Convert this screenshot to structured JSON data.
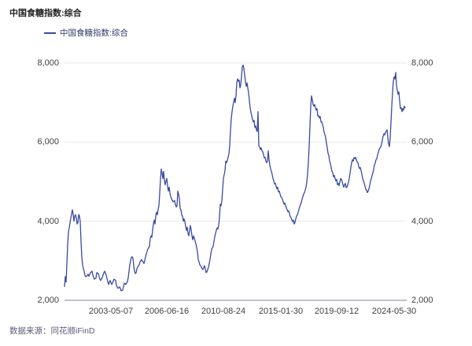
{
  "header": {
    "title": "中国食糖指数:综合"
  },
  "legend": {
    "items": [
      {
        "label": "中国食糖指数:综合",
        "color": "#3b4aa0"
      }
    ]
  },
  "footer": {
    "source": "数据来源：同花顺iFinD"
  },
  "colors": {
    "line": "#3b4aa0",
    "grid": "#e9e9f2",
    "axis": "#9c9cb5",
    "tick_text": "#404040"
  },
  "chart_data": {
    "type": "line",
    "title": "中国食糖指数:综合",
    "ylim": [
      2000,
      8000
    ],
    "grid": "horizontal",
    "axis_sides": "both",
    "legend_position": "top-left",
    "y_ticks": {
      "values": [
        2000,
        4000,
        6000,
        8000
      ],
      "labels": [
        "2,000",
        "4,000",
        "6,000",
        "8,000"
      ]
    },
    "x_ticks": {
      "labels": [
        "2003-05-07",
        "2006-06-16",
        "2010-08-24",
        "2015-01-30",
        "2019-09-12",
        "2024-05-30"
      ],
      "fractions": [
        0.1356,
        0.2989,
        0.4644,
        0.6322,
        0.7954,
        0.9632
      ]
    },
    "series": [
      {
        "name": "中国食糖指数:综合",
        "color": "#3b4aa0",
        "x_fraction_span": [
          0.0,
          0.9954
        ],
        "values": [
          2350,
          2600,
          2460,
          2900,
          3400,
          3730,
          3830,
          3960,
          4080,
          4180,
          4290,
          4180,
          4000,
          4130,
          4160,
          4090,
          3930,
          3960,
          4170,
          4130,
          3990,
          3490,
          3090,
          2895,
          2800,
          2736,
          2620,
          2600,
          2600,
          2630,
          2660,
          2610,
          2650,
          2700,
          2720,
          2736,
          2636,
          2580,
          2535,
          2550,
          2560,
          2700,
          2690,
          2680,
          2600,
          2535,
          2500,
          2540,
          2577,
          2640,
          2696,
          2736,
          2690,
          2636,
          2550,
          2475,
          2400,
          2450,
          2500,
          2450,
          2400,
          2435,
          2490,
          2535,
          2520,
          2500,
          2375,
          2330,
          2300,
          2320,
          2340,
          2300,
          2240,
          2250,
          2260,
          2340,
          2435,
          2420,
          2400,
          2440,
          2475,
          2575,
          2735,
          2895,
          3000,
          3090,
          3100,
          3060,
          2875,
          2735,
          2675,
          2695,
          2795,
          2835,
          2875,
          2895,
          2975,
          3000,
          3030,
          2990,
          2970,
          2930,
          3000,
          3100,
          3170,
          3240,
          3300,
          3330,
          3370,
          3570,
          3630,
          3590,
          3770,
          3930,
          4030,
          3930,
          4130,
          4230,
          4160,
          4290,
          4390,
          4700,
          5060,
          5320,
          5220,
          5080,
          5260,
          5020,
          4920,
          5020,
          5080,
          4900,
          4760,
          4860,
          4720,
          4620,
          4570,
          4530,
          4490,
          4510,
          4520,
          4420,
          4360,
          4390,
          4760,
          4690,
          4570,
          4320,
          4290,
          4160,
          4130,
          4000,
          4060,
          3990,
          3870,
          3770,
          3850,
          3690,
          3630,
          3770,
          3890,
          3790,
          3630,
          3530,
          3630,
          3570,
          3500,
          3430,
          3330,
          3230,
          3030,
          2975,
          2895,
          2875,
          2835,
          2795,
          2775,
          2835,
          2875,
          2795,
          2700,
          2715,
          2775,
          2835,
          2935,
          3030,
          3170,
          3290,
          3330,
          3370,
          3490,
          3610,
          3690,
          3770,
          3830,
          3800,
          3900,
          4100,
          4430,
          4390,
          4520,
          4800,
          5080,
          5180,
          5280,
          5520,
          5480,
          5540,
          5620,
          5700,
          5910,
          6300,
          6610,
          6770,
          6910,
          7010,
          7110,
          7000,
          7170,
          7500,
          7600,
          7540,
          7570,
          7370,
          7445,
          7665,
          7900,
          7950,
          7860,
          7700,
          7540,
          7410,
          7500,
          7370,
          7245,
          7050,
          6870,
          6750,
          6670,
          6570,
          6510,
          6550,
          6370,
          6410,
          6310,
          6270,
          6770,
          5910,
          5870,
          5815,
          5855,
          5780,
          5760,
          5680,
          5600,
          5615,
          5520,
          5480,
          5520,
          5780,
          5555,
          5420,
          5320,
          5260,
          5180,
          5080,
          5020,
          4940,
          4960,
          4880,
          4820,
          4860,
          4740,
          4760,
          4690,
          4620,
          4600,
          4560,
          4490,
          4430,
          4460,
          4390,
          4340,
          4290,
          4240,
          4260,
          4190,
          4110,
          4090,
          4030,
          3990,
          4030,
          3930,
          3970,
          4060,
          4130,
          4160,
          4220,
          4300,
          4360,
          4430,
          4470,
          4560,
          4620,
          4690,
          4720,
          4790,
          4860,
          4990,
          5200,
          5500,
          5900,
          6400,
          6900,
          7170,
          7070,
          6950,
          6910,
          6950,
          6870,
          6810,
          6850,
          6660,
          6670,
          6610,
          6650,
          6510,
          6510,
          6445,
          6370,
          6245,
          6190,
          6110,
          5975,
          5855,
          5715,
          5660,
          5520,
          5460,
          5360,
          5260,
          5230,
          5120,
          5160,
          5080,
          5020,
          5060,
          4920,
          4960,
          4900,
          4990,
          5080,
          5060,
          5000,
          4920,
          4860,
          4920,
          4960,
          4850,
          4860,
          4920,
          4990,
          5080,
          5220,
          5360,
          5480,
          5555,
          5520,
          5610,
          5580,
          5615,
          5555,
          5500,
          5480,
          5390,
          5330,
          5360,
          5280,
          5190,
          5080,
          5020,
          4960,
          4880,
          4800,
          4790,
          4720,
          4760,
          4820,
          4910,
          5020,
          5080,
          5160,
          5220,
          5320,
          5420,
          5480,
          5555,
          5580,
          5680,
          5750,
          5815,
          5855,
          5875,
          5950,
          6050,
          6150,
          6210,
          6180,
          6245,
          6280,
          6310,
          6120,
          5950,
          5890,
          6110,
          6500,
          6900,
          7250,
          7540,
          7650,
          7600,
          7760,
          7440,
          7310,
          7210,
          7270,
          7050,
          6850,
          6870,
          6770,
          6850,
          6810,
          6910,
          6870
        ]
      }
    ]
  }
}
